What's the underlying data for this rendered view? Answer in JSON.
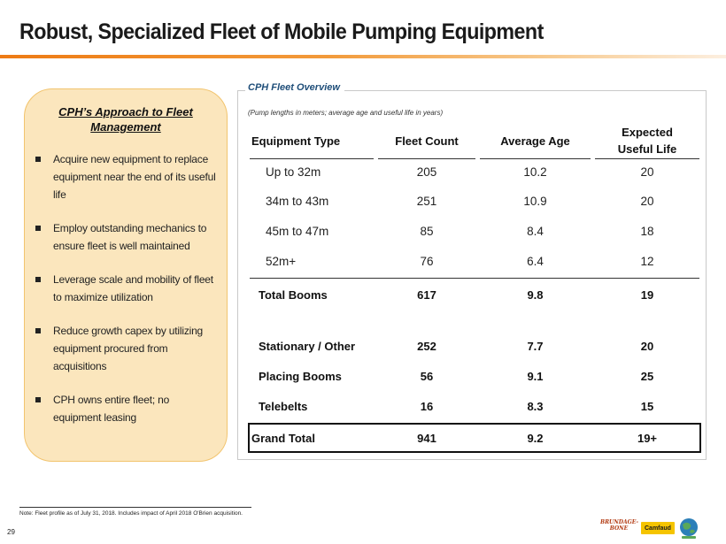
{
  "title": "Robust, Specialized Fleet of Mobile Pumping Equipment",
  "approach": {
    "title_line1": "CPH’s Approach to Fleet",
    "title_line2": "Management",
    "bullets": [
      "Acquire new equipment to replace equipment near the end of its useful life",
      "Employ outstanding mechanics to ensure fleet is well maintained",
      "Leverage scale and mobility of fleet to maximize utilization",
      "Reduce growth capex by utilizing equipment procured from acquisitions",
      "CPH owns entire fleet; no equipment leasing"
    ]
  },
  "overview": {
    "title": "CPH Fleet Overview",
    "subtitle": "(Pump lengths in meters; average age and useful life in years)",
    "headers": {
      "type": "Equipment Type",
      "count": "Fleet Count",
      "age": "Average Age",
      "life_line1": "Expected",
      "life_line2": "Useful Life"
    },
    "rows": [
      {
        "type": "Up to 32m",
        "count": "205",
        "age": "10.2",
        "life": "20"
      },
      {
        "type": "34m to 43m",
        "count": "251",
        "age": "10.9",
        "life": "20"
      },
      {
        "type": "45m to 47m",
        "count": "85",
        "age": "8.4",
        "life": "18"
      },
      {
        "type": "52m+",
        "count": "76",
        "age": "6.4",
        "life": "12"
      },
      {
        "type": "Total Booms",
        "count": "617",
        "age": "9.8",
        "life": "19"
      },
      {
        "type": "Stationary / Other",
        "count": "252",
        "age": "7.7",
        "life": "20"
      },
      {
        "type": "Placing Booms",
        "count": "56",
        "age": "9.1",
        "life": "25"
      },
      {
        "type": "Telebelts",
        "count": "16",
        "age": "8.3",
        "life": "15"
      },
      {
        "type": "Grand Total",
        "count": "941",
        "age": "9.2",
        "life": "19+"
      }
    ]
  },
  "footnote": "Note:  Fleet profile as of July 31, 2018.  Includes impact of April 2018 O'Brien acquisition.",
  "page_number": "29",
  "logos": {
    "brundage_line1": "BRUNDAGE-",
    "brundage_line2": "BONE",
    "camfaud": "Camfaud"
  }
}
